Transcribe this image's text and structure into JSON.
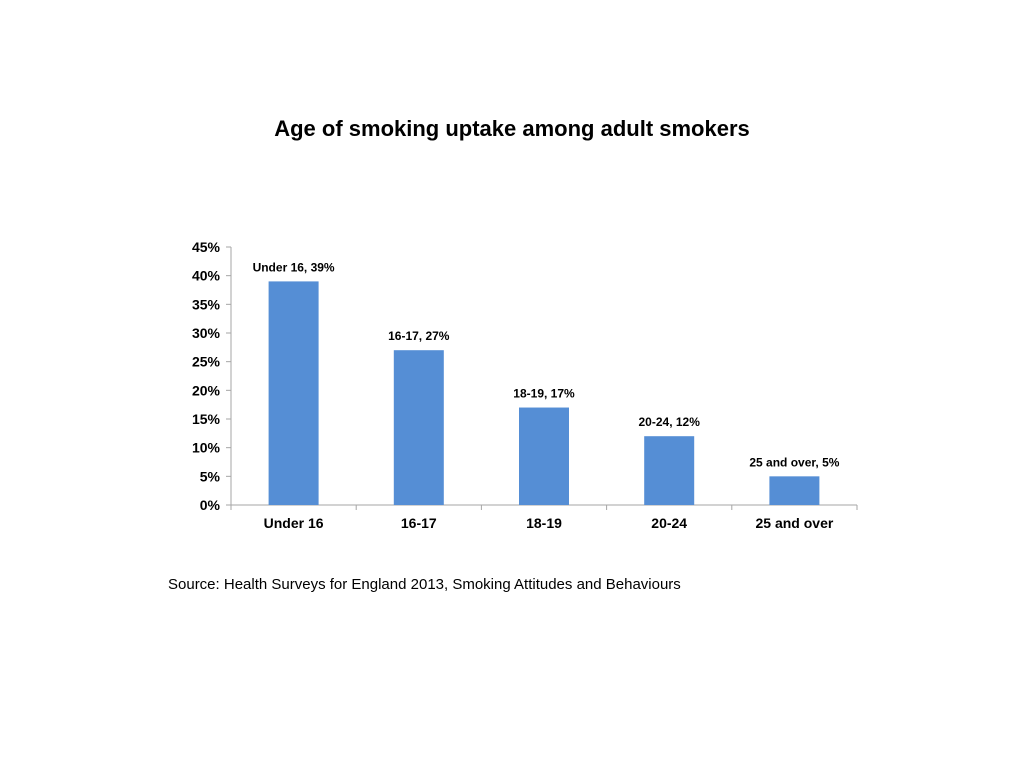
{
  "chart_data": {
    "type": "bar",
    "title": "Age of smoking uptake among adult smokers",
    "categories": [
      "Under 16",
      "16-17",
      "18-19",
      "20-24",
      "25 and over"
    ],
    "values": [
      39,
      27,
      17,
      12,
      5
    ],
    "data_labels": [
      "Under 16, 39%",
      "16-17, 27%",
      "18-19, 17%",
      "20-24, 12%",
      "25 and over, 5%"
    ],
    "y_ticks": [
      "0%",
      "5%",
      "10%",
      "15%",
      "20%",
      "25%",
      "30%",
      "35%",
      "40%",
      "45%"
    ],
    "ylim": [
      0,
      45
    ],
    "bar_color": "#558ED5",
    "grid": false,
    "legend": "none"
  },
  "source": "Source: Health Surveys for England 2013, Smoking Attitudes and Behaviours"
}
